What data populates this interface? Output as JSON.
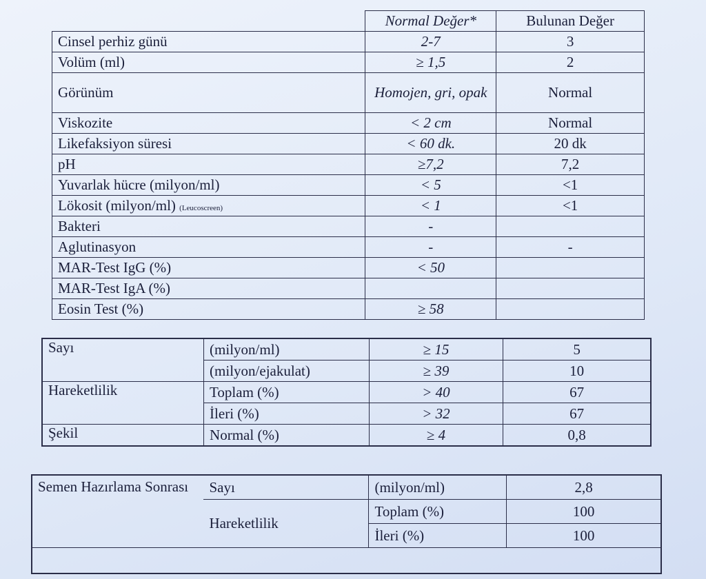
{
  "table1": {
    "header": [
      "Normal Değer*",
      "Bulunan Değer"
    ],
    "rows": [
      {
        "label": "Cinsel perhiz günü",
        "normal": "2-7",
        "found": "3"
      },
      {
        "label": "Volüm (ml)",
        "normal": "≥ 1,5",
        "found": "2"
      },
      {
        "label": "Görünüm",
        "normal": "Homojen, gri, opak",
        "found": "Normal"
      },
      {
        "label": "Viskozite",
        "normal": "< 2 cm",
        "found": "Normal"
      },
      {
        "label": "Likefaksiyon süresi",
        "normal": "< 60 dk.",
        "found": "20 dk"
      },
      {
        "label": "pH",
        "normal": "≥7,2",
        "found": "7,2"
      },
      {
        "label": "Yuvarlak hücre (milyon/ml)",
        "normal": "< 5",
        "found": "<1"
      },
      {
        "label": "Lökosit  (milyon/ml)",
        "note": "(Leucoscreen)",
        "normal": "< 1",
        "found": "<1"
      },
      {
        "label": "Bakteri",
        "normal": "-"
      },
      {
        "label": "Aglutinasyon",
        "normal": "-",
        "found": "-"
      },
      {
        "label": "MAR-Test   IgG (%)",
        "normal": "< 50"
      },
      {
        "label": "MAR-Test   IgA (%)"
      },
      {
        "label": "Eosin Test (%)",
        "normal": "≥ 58"
      }
    ]
  },
  "table2": {
    "groups": [
      {
        "label": "Sayı",
        "rows": [
          {
            "unit": "(milyon/ml)",
            "normal": "≥ 15",
            "found": "5"
          },
          {
            "unit": "(milyon/ejakulat)",
            "normal": "≥ 39",
            "found": "10"
          }
        ]
      },
      {
        "label": "Hareketlilik",
        "rows": [
          {
            "unit": "Toplam (%)",
            "normal": "> 40",
            "found": "67"
          },
          {
            "unit": "İleri (%)",
            "normal": "> 32",
            "found": "67"
          }
        ]
      },
      {
        "label": "Şekil",
        "rows": [
          {
            "unit": "Normal (%)",
            "normal": "≥ 4",
            "found": "0,8"
          }
        ]
      }
    ]
  },
  "table3": {
    "label": "Semen Hazırlama Sonrası",
    "groups": [
      {
        "label": "Sayı",
        "rows": [
          {
            "unit": "(milyon/ml)",
            "found": "2,8"
          }
        ]
      },
      {
        "label": "Hareketlilik",
        "rows": [
          {
            "unit": "Toplam (%)",
            "found": "100"
          },
          {
            "unit": "İleri (%)",
            "found": "100"
          }
        ]
      }
    ]
  }
}
